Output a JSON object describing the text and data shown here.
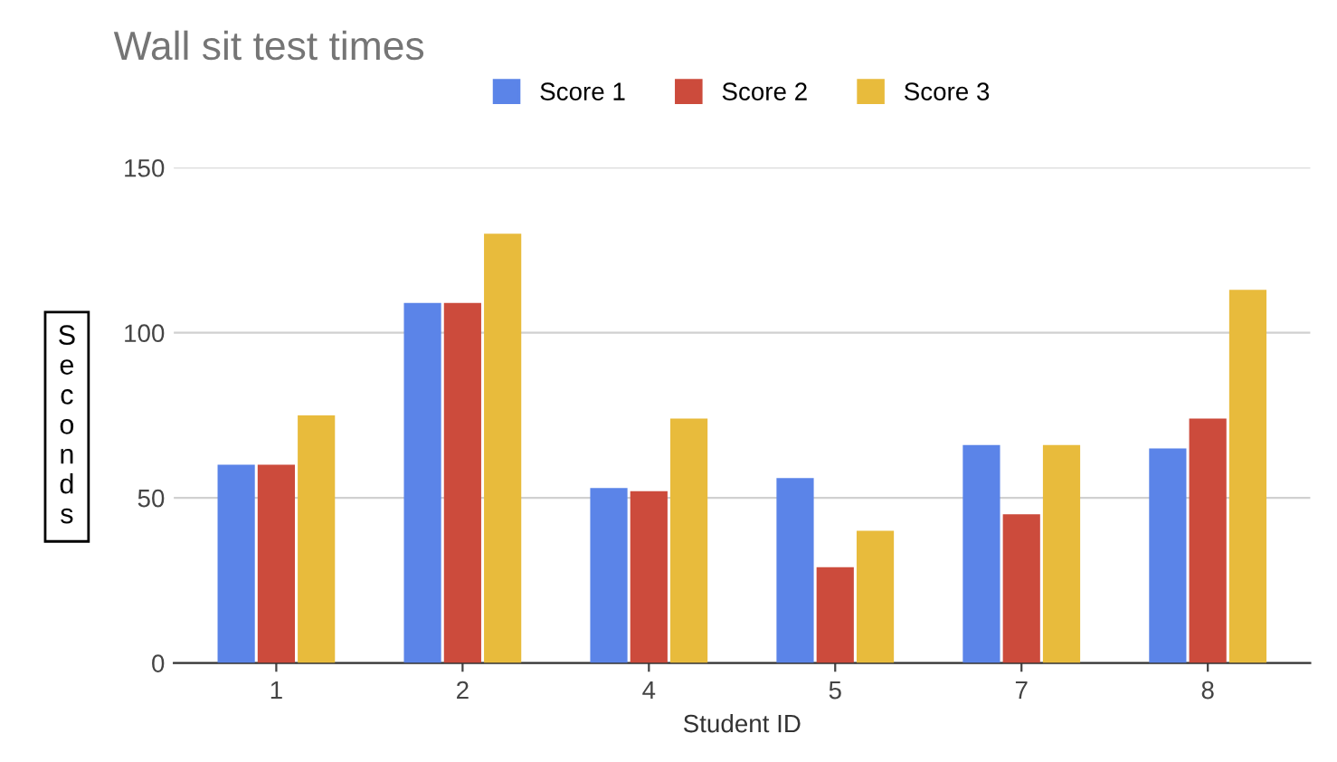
{
  "chart_data": {
    "type": "bar",
    "title": "Wall sit test times",
    "xlabel": "Student ID",
    "ylabel": "Seconds",
    "categories": [
      "1",
      "2",
      "4",
      "5",
      "7",
      "8"
    ],
    "series": [
      {
        "name": "Score 1",
        "color": "#5b84e8",
        "values": [
          60,
          109,
          53,
          56,
          66,
          65
        ]
      },
      {
        "name": "Score 2",
        "color": "#cc4b3c",
        "values": [
          60,
          109,
          52,
          29,
          45,
          74
        ]
      },
      {
        "name": "Score 3",
        "color": "#e8bb3c",
        "values": [
          75,
          130,
          74,
          40,
          66,
          113
        ]
      }
    ],
    "ylim": [
      0,
      150
    ],
    "yticks": [
      0,
      50,
      100,
      150
    ],
    "grid": "y",
    "legend": "top"
  }
}
